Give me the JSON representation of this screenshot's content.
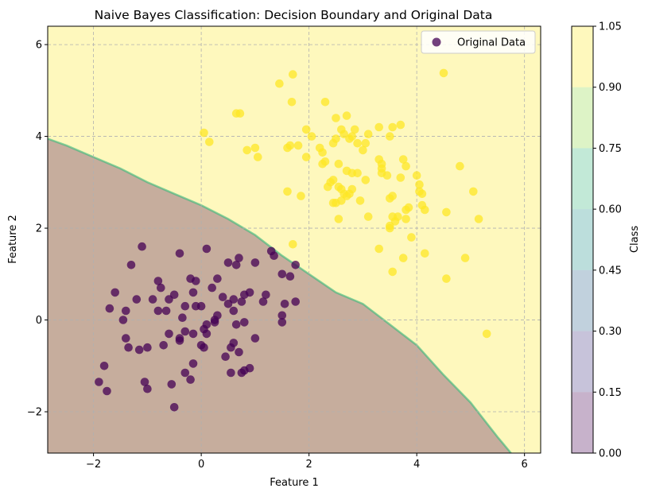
{
  "chart_data": {
    "type": "scatter",
    "title": "Naive Bayes Classification: Decision Boundary and Original Data",
    "xlabel": "Feature 1",
    "ylabel": "Feature 2",
    "xlim": [
      -2.85,
      6.3
    ],
    "ylim": [
      -2.9,
      6.4
    ],
    "x_ticks": [
      -2,
      0,
      2,
      4,
      6
    ],
    "y_ticks": [
      -2,
      0,
      2,
      4,
      6
    ],
    "x_tick_labels": [
      "−2",
      "0",
      "2",
      "4",
      "6"
    ],
    "y_tick_labels": [
      "−2",
      "0",
      "2",
      "4",
      "6"
    ],
    "grid": true,
    "legend": {
      "position": "top-right",
      "label": "Original Data"
    },
    "colorbar": {
      "label": "Class",
      "levels": [
        0.0,
        0.15,
        0.3,
        0.45,
        0.6,
        0.75,
        0.9,
        1.05
      ],
      "tick_labels": [
        "0.00",
        "0.15",
        "0.30",
        "0.45",
        "0.60",
        "0.75",
        "0.90",
        "1.05"
      ],
      "colors": [
        "#440154",
        "#443983",
        "#31688e",
        "#21918c",
        "#35b779",
        "#90d743",
        "#fde725"
      ],
      "alpha": 0.3
    },
    "class_colors": {
      "0": "#440154",
      "1": "#fde725"
    },
    "decision_boundary": [
      [
        -2.85,
        3.95
      ],
      [
        -2.5,
        3.8
      ],
      [
        -2.0,
        3.55
      ],
      [
        -1.5,
        3.3
      ],
      [
        -1.0,
        3.0
      ],
      [
        -0.5,
        2.75
      ],
      [
        0.0,
        2.5
      ],
      [
        0.5,
        2.2
      ],
      [
        1.0,
        1.85
      ],
      [
        1.5,
        1.4
      ],
      [
        2.0,
        1.0
      ],
      [
        2.5,
        0.6
      ],
      [
        3.0,
        0.35
      ],
      [
        3.5,
        -0.1
      ],
      [
        4.0,
        -0.55
      ],
      [
        4.5,
        -1.2
      ],
      [
        5.0,
        -1.8
      ],
      [
        5.5,
        -2.55
      ],
      [
        5.75,
        -2.9
      ]
    ],
    "series": [
      {
        "class": 0,
        "points": [
          [
            -1.1,
            1.6
          ],
          [
            -1.3,
            1.2
          ],
          [
            -0.4,
            1.45
          ],
          [
            0.1,
            1.55
          ],
          [
            -1.6,
            0.6
          ],
          [
            -1.7,
            0.25
          ],
          [
            -1.2,
            0.45
          ],
          [
            -0.9,
            0.45
          ],
          [
            -0.8,
            0.85
          ],
          [
            -0.75,
            0.7
          ],
          [
            -0.6,
            0.45
          ],
          [
            -0.5,
            0.55
          ],
          [
            -0.2,
            0.9
          ],
          [
            -0.1,
            0.85
          ],
          [
            0.0,
            0.3
          ],
          [
            -0.8,
            0.2
          ],
          [
            -0.65,
            0.2
          ],
          [
            -0.3,
            0.3
          ],
          [
            -0.1,
            0.3
          ],
          [
            0.2,
            0.7
          ],
          [
            0.3,
            0.9
          ],
          [
            0.5,
            1.25
          ],
          [
            0.65,
            1.2
          ],
          [
            0.7,
            1.35
          ],
          [
            1.0,
            1.25
          ],
          [
            1.3,
            1.5
          ],
          [
            1.35,
            1.4
          ],
          [
            1.5,
            1.0
          ],
          [
            1.65,
            0.95
          ],
          [
            1.75,
            1.2
          ],
          [
            0.6,
            0.45
          ],
          [
            0.75,
            0.4
          ],
          [
            0.8,
            0.55
          ],
          [
            0.9,
            0.6
          ],
          [
            1.2,
            0.55
          ],
          [
            1.15,
            0.4
          ],
          [
            1.55,
            0.35
          ],
          [
            1.75,
            0.4
          ],
          [
            -1.4,
            0.2
          ],
          [
            -1.45,
            0.0
          ],
          [
            -1.4,
            -0.4
          ],
          [
            -1.35,
            -0.6
          ],
          [
            -1.15,
            -0.65
          ],
          [
            -1.0,
            -0.6
          ],
          [
            -0.7,
            -0.55
          ],
          [
            -0.4,
            -0.45
          ],
          [
            -0.3,
            -0.25
          ],
          [
            -0.15,
            -0.3
          ],
          [
            0.05,
            -0.2
          ],
          [
            0.1,
            -0.1
          ],
          [
            0.25,
            -0.05
          ],
          [
            0.4,
            0.5
          ],
          [
            0.5,
            0.35
          ],
          [
            0.6,
            0.2
          ],
          [
            0.65,
            -0.1
          ],
          [
            0.8,
            -0.05
          ],
          [
            0.45,
            -0.8
          ],
          [
            0.55,
            -0.6
          ],
          [
            0.6,
            -0.5
          ],
          [
            0.7,
            -0.7
          ],
          [
            1.0,
            -0.4
          ],
          [
            1.5,
            -0.05
          ],
          [
            1.5,
            0.1
          ],
          [
            -0.4,
            -0.4
          ],
          [
            0.0,
            -0.55
          ],
          [
            0.05,
            -0.6
          ],
          [
            -0.3,
            -1.15
          ],
          [
            -0.15,
            -0.95
          ],
          [
            -0.2,
            -1.3
          ],
          [
            -0.55,
            -1.4
          ],
          [
            -0.5,
            -1.9
          ],
          [
            -1.05,
            -1.35
          ],
          [
            -1.0,
            -1.5
          ],
          [
            -1.8,
            -1.0
          ],
          [
            -1.9,
            -1.35
          ],
          [
            -1.75,
            -1.55
          ],
          [
            0.55,
            -1.15
          ],
          [
            0.75,
            -1.15
          ],
          [
            0.8,
            -1.1
          ],
          [
            0.9,
            -1.05
          ],
          [
            -0.35,
            0.05
          ],
          [
            -0.15,
            0.6
          ],
          [
            0.3,
            0.1
          ],
          [
            0.1,
            -0.3
          ],
          [
            -0.6,
            -0.3
          ],
          [
            0.25,
            0.0
          ]
        ]
      },
      {
        "class": 1,
        "points": [
          [
            0.05,
            4.08
          ],
          [
            0.15,
            3.88
          ],
          [
            0.65,
            4.5
          ],
          [
            0.72,
            4.5
          ],
          [
            0.85,
            3.7
          ],
          [
            1.0,
            3.75
          ],
          [
            1.05,
            3.55
          ],
          [
            1.45,
            5.15
          ],
          [
            1.6,
            3.75
          ],
          [
            1.65,
            3.8
          ],
          [
            1.68,
            4.75
          ],
          [
            1.7,
            5.35
          ],
          [
            1.8,
            3.8
          ],
          [
            1.95,
            4.15
          ],
          [
            1.95,
            3.55
          ],
          [
            1.6,
            2.8
          ],
          [
            2.05,
            4.0
          ],
          [
            2.2,
            3.75
          ],
          [
            2.25,
            3.65
          ],
          [
            2.3,
            4.75
          ],
          [
            2.25,
            3.4
          ],
          [
            2.3,
            3.45
          ],
          [
            2.45,
            3.85
          ],
          [
            2.5,
            3.95
          ],
          [
            2.5,
            4.4
          ],
          [
            2.55,
            3.4
          ],
          [
            2.6,
            4.15
          ],
          [
            2.65,
            4.05
          ],
          [
            2.7,
            4.45
          ],
          [
            2.75,
            3.95
          ],
          [
            2.8,
            4.0
          ],
          [
            2.85,
            4.15
          ],
          [
            2.9,
            3.85
          ],
          [
            3.0,
            3.7
          ],
          [
            3.05,
            3.85
          ],
          [
            3.1,
            4.05
          ],
          [
            3.3,
            4.2
          ],
          [
            3.35,
            3.4
          ],
          [
            3.35,
            3.3
          ],
          [
            3.5,
            4.0
          ],
          [
            3.55,
            4.2
          ],
          [
            3.7,
            4.25
          ],
          [
            2.35,
            2.9
          ],
          [
            2.4,
            3.0
          ],
          [
            2.45,
            3.05
          ],
          [
            2.55,
            2.9
          ],
          [
            2.6,
            2.85
          ],
          [
            2.65,
            2.75
          ],
          [
            2.7,
            3.25
          ],
          [
            2.8,
            3.2
          ],
          [
            2.9,
            3.2
          ],
          [
            2.45,
            2.55
          ],
          [
            2.5,
            2.55
          ],
          [
            2.6,
            2.6
          ],
          [
            2.7,
            2.7
          ],
          [
            2.75,
            2.75
          ],
          [
            2.8,
            2.85
          ],
          [
            2.95,
            2.6
          ],
          [
            3.05,
            3.05
          ],
          [
            3.1,
            2.25
          ],
          [
            3.3,
            3.5
          ],
          [
            3.35,
            3.2
          ],
          [
            3.45,
            3.15
          ],
          [
            3.5,
            2.65
          ],
          [
            3.55,
            2.7
          ],
          [
            3.5,
            2.0
          ],
          [
            3.55,
            2.25
          ],
          [
            3.6,
            2.15
          ],
          [
            3.65,
            2.25
          ],
          [
            3.7,
            3.1
          ],
          [
            3.75,
            3.5
          ],
          [
            3.8,
            3.35
          ],
          [
            3.85,
            2.45
          ],
          [
            3.8,
            2.4
          ],
          [
            3.9,
            1.8
          ],
          [
            3.8,
            2.2
          ],
          [
            3.75,
            1.35
          ],
          [
            3.55,
            1.05
          ],
          [
            3.3,
            1.55
          ],
          [
            3.5,
            2.05
          ],
          [
            4.0,
            3.15
          ],
          [
            4.05,
            2.95
          ],
          [
            4.1,
            2.75
          ],
          [
            4.05,
            2.8
          ],
          [
            4.15,
            2.4
          ],
          [
            4.1,
            2.5
          ],
          [
            4.15,
            1.45
          ],
          [
            4.5,
            5.38
          ],
          [
            4.55,
            2.35
          ],
          [
            4.55,
            0.9
          ],
          [
            4.8,
            3.35
          ],
          [
            4.9,
            1.35
          ],
          [
            5.05,
            2.8
          ],
          [
            5.15,
            2.2
          ],
          [
            5.3,
            -0.3
          ],
          [
            2.55,
            2.2
          ],
          [
            1.85,
            2.7
          ],
          [
            1.7,
            1.65
          ]
        ]
      }
    ]
  }
}
